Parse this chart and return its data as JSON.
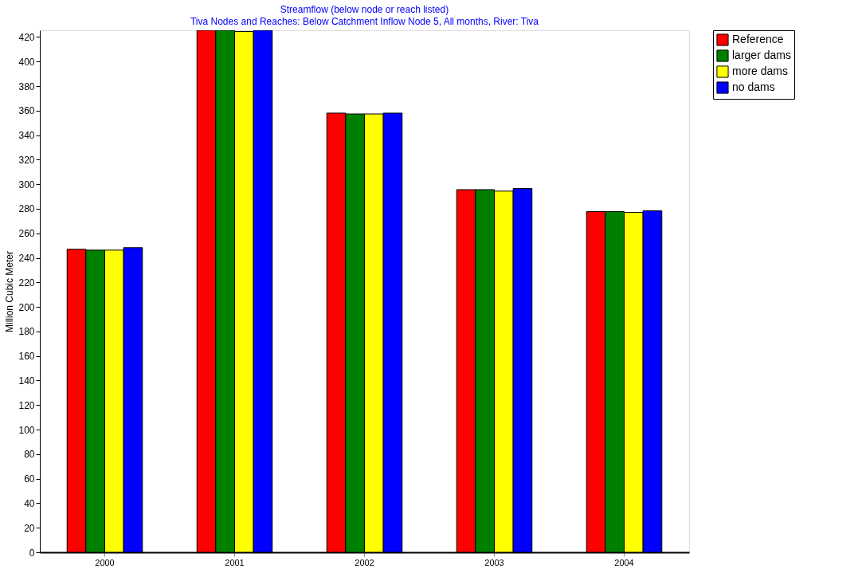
{
  "chart_data": {
    "type": "bar",
    "title": "Streamflow (below node or reach listed)",
    "subtitle": "Tiva Nodes and Reaches: Below Catchment Inflow Node 5,  All months,  River: Tiva",
    "ylabel": "Million Cubic Meter",
    "categories": [
      "2000",
      "2001",
      "2002",
      "2003",
      "2004"
    ],
    "series": [
      {
        "name": "Reference",
        "color": "#ff0000",
        "values": [
          247,
          425.5,
          358,
          295.6,
          277.7
        ]
      },
      {
        "name": "larger dams",
        "color": "#008000",
        "values": [
          246.3,
          425.5,
          357.3,
          295.6,
          277.7
        ]
      },
      {
        "name": "more dams",
        "color": "#ffff00",
        "values": [
          246.3,
          424.5,
          357.3,
          294.4,
          277
        ]
      },
      {
        "name": "no dams",
        "color": "#0000ff",
        "values": [
          248.3,
          425.5,
          358,
          296.5,
          278.4
        ]
      }
    ],
    "ylim": [
      0,
      425.5
    ],
    "yticks": [
      0,
      20,
      40,
      60,
      80,
      100,
      120,
      140,
      160,
      180,
      200,
      220,
      240,
      260,
      280,
      300,
      320,
      340,
      360,
      380,
      400,
      420
    ],
    "grid": false,
    "legend": "top right"
  }
}
